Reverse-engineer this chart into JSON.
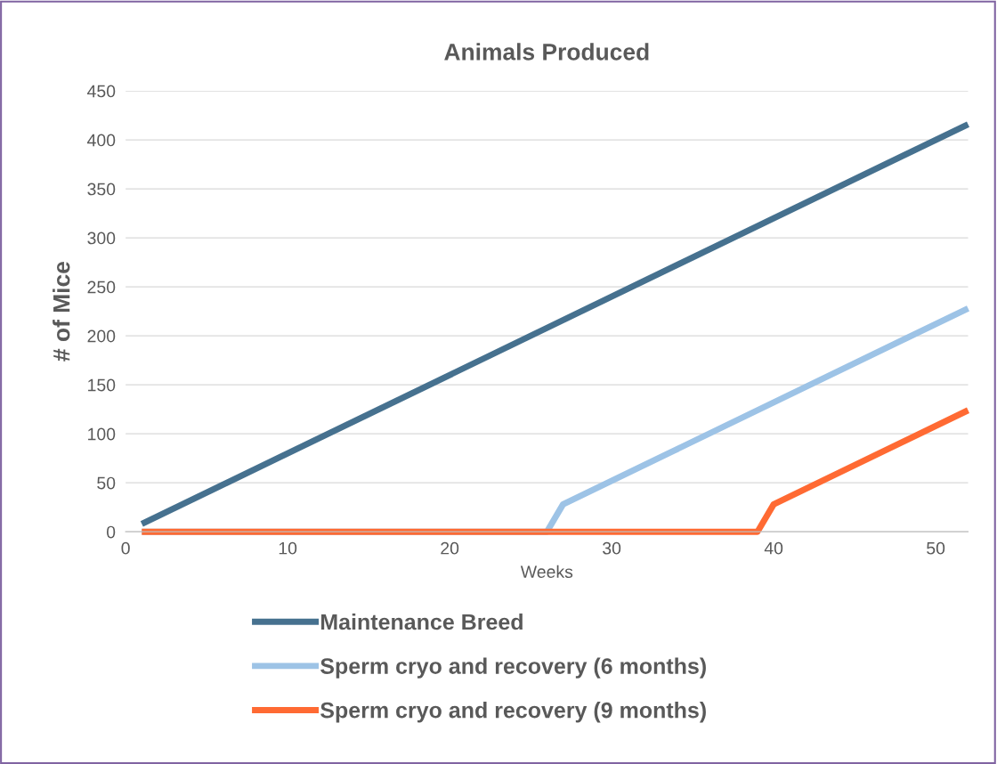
{
  "chart_data": {
    "type": "line",
    "title": "Animals Produced",
    "xlabel": "Weeks",
    "ylabel": "# of Mice",
    "xlim": [
      0,
      52
    ],
    "xticks": [
      0,
      10,
      20,
      30,
      40,
      50
    ],
    "ylim": [
      0,
      450
    ],
    "yticks": [
      0,
      50,
      100,
      150,
      200,
      250,
      300,
      350,
      400,
      450
    ],
    "grid": "y",
    "legend": "bottom",
    "marker": "none",
    "line_style": "solid",
    "series": [
      {
        "name": "Maintenance Breed",
        "color": "#46718f",
        "x": [
          1,
          52
        ],
        "values": [
          8,
          416
        ]
      },
      {
        "name": "Sperm cryo and recovery (6 months)",
        "color": "#9dc3e6",
        "x": [
          1,
          26,
          27,
          52
        ],
        "values": [
          0,
          0,
          28,
          228
        ]
      },
      {
        "name": "Sperm cryo and recovery (9 months)",
        "color": "#ff6a33",
        "x": [
          1,
          39,
          40,
          52
        ],
        "values": [
          0,
          0,
          28,
          124
        ]
      }
    ]
  }
}
